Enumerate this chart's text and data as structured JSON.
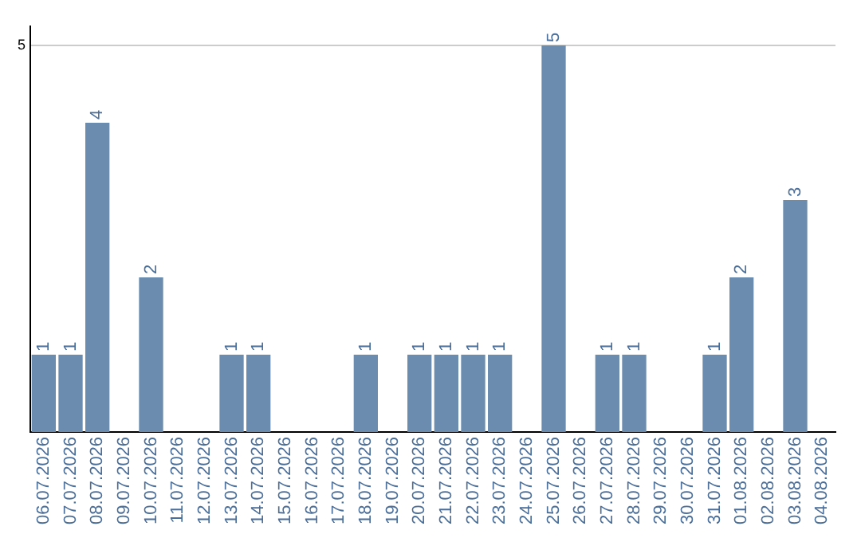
{
  "chart_data": {
    "type": "bar",
    "categories": [
      "06.07.2026",
      "07.07.2026",
      "08.07.2026",
      "09.07.2026",
      "10.07.2026",
      "11.07.2026",
      "12.07.2026",
      "13.07.2026",
      "14.07.2026",
      "15.07.2026",
      "16.07.2026",
      "17.07.2026",
      "18.07.2026",
      "19.07.2026",
      "20.07.2026",
      "21.07.2026",
      "22.07.2026",
      "23.07.2026",
      "24.07.2026",
      "25.07.2026",
      "26.07.2026",
      "27.07.2026",
      "28.07.2026",
      "29.07.2026",
      "30.07.2026",
      "31.07.2026",
      "01.08.2026",
      "02.08.2026",
      "03.08.2026",
      "04.08.2026"
    ],
    "values": [
      1,
      1,
      4,
      0,
      2,
      0,
      0,
      1,
      1,
      0,
      0,
      0,
      1,
      0,
      1,
      1,
      1,
      1,
      0,
      5,
      0,
      1,
      1,
      0,
      0,
      1,
      2,
      0,
      3,
      0
    ],
    "value_labels": [
      "1",
      "1",
      "4",
      null,
      "2",
      null,
      null,
      "1",
      "1",
      null,
      null,
      null,
      "1",
      null,
      "1",
      "1",
      "1",
      "1",
      null,
      "5",
      null,
      "1",
      "1",
      null,
      null,
      "1",
      "2",
      null,
      "3",
      null
    ],
    "color": "#6b8cae",
    "ylim": [
      0,
      5.25
    ],
    "yticks": [
      5
    ],
    "grid": "y"
  }
}
